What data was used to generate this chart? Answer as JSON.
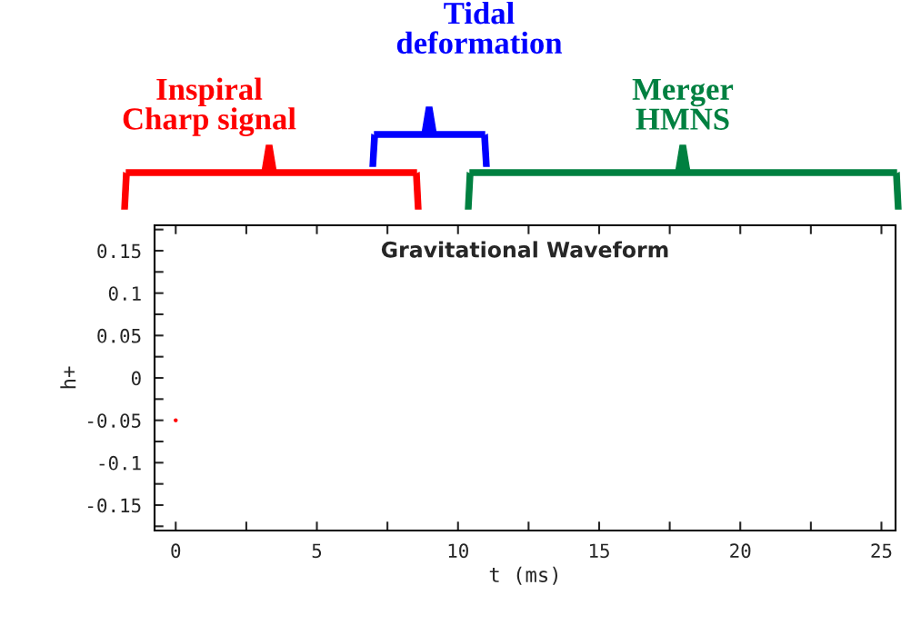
{
  "chart_data": {
    "type": "scatter",
    "title": "Gravitational Waveform",
    "xlabel": "t (ms)",
    "ylabel": "h+",
    "x": [
      0
    ],
    "series": [
      {
        "color": "#ff0000",
        "values": [
          -0.05
        ]
      }
    ],
    "marker": "circle",
    "xlim": [
      -0.75,
      25.5
    ],
    "xticks": [
      0,
      {
        "value": 2.5,
        "label": null
      },
      5,
      {
        "value": 7.5,
        "label": null
      },
      10,
      {
        "value": 12.5,
        "label": null
      },
      15,
      {
        "value": 17.5,
        "label": null
      },
      20,
      {
        "value": 22.5,
        "label": null
      },
      25
    ],
    "ylim": [
      -0.18,
      0.18
    ],
    "yticks": [
      {
        "value": -0.175,
        "label": null
      },
      -0.15,
      {
        "value": -0.125,
        "label": null
      },
      -0.1,
      {
        "value": -0.075,
        "label": null
      },
      -0.05,
      {
        "value": -0.025,
        "label": null
      },
      0,
      {
        "value": 0.025,
        "label": null
      },
      0.05,
      {
        "value": 0.075,
        "label": null
      },
      0.1,
      {
        "value": 0.125,
        "label": null
      },
      0.15,
      {
        "value": 0.175,
        "label": null
      }
    ],
    "grid": false,
    "annotations": [
      "Inspiral\nCharp signal",
      "Tidal\ndeformation",
      "Merger\nHMNS"
    ]
  }
}
